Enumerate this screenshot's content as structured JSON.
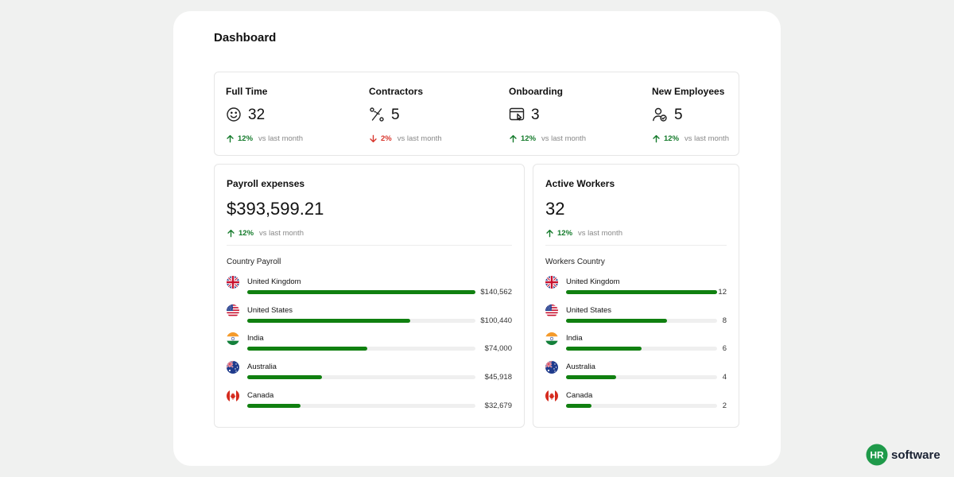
{
  "page": {
    "title": "Dashboard"
  },
  "stats": [
    {
      "label": "Full Time",
      "icon": "smile-icon",
      "value": "32",
      "delta": "12%",
      "direction": "up",
      "vs": "vs last month"
    },
    {
      "label": "Contractors",
      "icon": "percent-route-icon",
      "value": "5",
      "delta": "2%",
      "direction": "down",
      "vs": "vs last month"
    },
    {
      "label": "Onboarding",
      "icon": "browser-cursor-icon",
      "value": "3",
      "delta": "12%",
      "direction": "up",
      "vs": "vs last month"
    },
    {
      "label": "New Employees",
      "icon": "user-check-icon",
      "value": "5",
      "delta": "12%",
      "direction": "up",
      "vs": "vs last month"
    }
  ],
  "payroll": {
    "title": "Payroll expenses",
    "value": "$393,599.21",
    "delta": "12%",
    "vs": "vs last month",
    "subtitle": "Country Payroll",
    "max": 140562,
    "rows": [
      {
        "country": "United Kingdom",
        "flag": "uk-flag-icon",
        "amount": "$140,562",
        "value": 140562
      },
      {
        "country": "United States",
        "flag": "us-flag-icon",
        "amount": "$100,440",
        "value": 100440
      },
      {
        "country": "India",
        "flag": "india-flag-icon",
        "amount": "$74,000",
        "value": 74000
      },
      {
        "country": "Australia",
        "flag": "australia-flag-icon",
        "amount": "$45,918",
        "value": 45918
      },
      {
        "country": "Canada",
        "flag": "canada-flag-icon",
        "amount": "$32,679",
        "value": 32679
      }
    ]
  },
  "workers": {
    "title": "Active Workers",
    "value": "32",
    "delta": "12%",
    "vs": "vs last month",
    "subtitle": "Workers Country",
    "max": 12,
    "rows": [
      {
        "country": "United Kingdom",
        "flag": "uk-flag-icon",
        "amount": "12",
        "value": 12
      },
      {
        "country": "United States",
        "flag": "us-flag-icon",
        "amount": "8",
        "value": 8
      },
      {
        "country": "India",
        "flag": "india-flag-icon",
        "amount": "6",
        "value": 6
      },
      {
        "country": "Australia",
        "flag": "australia-flag-icon",
        "amount": "4",
        "value": 4
      },
      {
        "country": "Canada",
        "flag": "canada-flag-icon",
        "amount": "2",
        "value": 2
      }
    ]
  },
  "brand": {
    "logo_text": "HR",
    "name": "software"
  },
  "colors": {
    "accent_green": "#108010",
    "up": "#137a2a",
    "down": "#d8342b",
    "brand_green": "#1f9a4a"
  }
}
